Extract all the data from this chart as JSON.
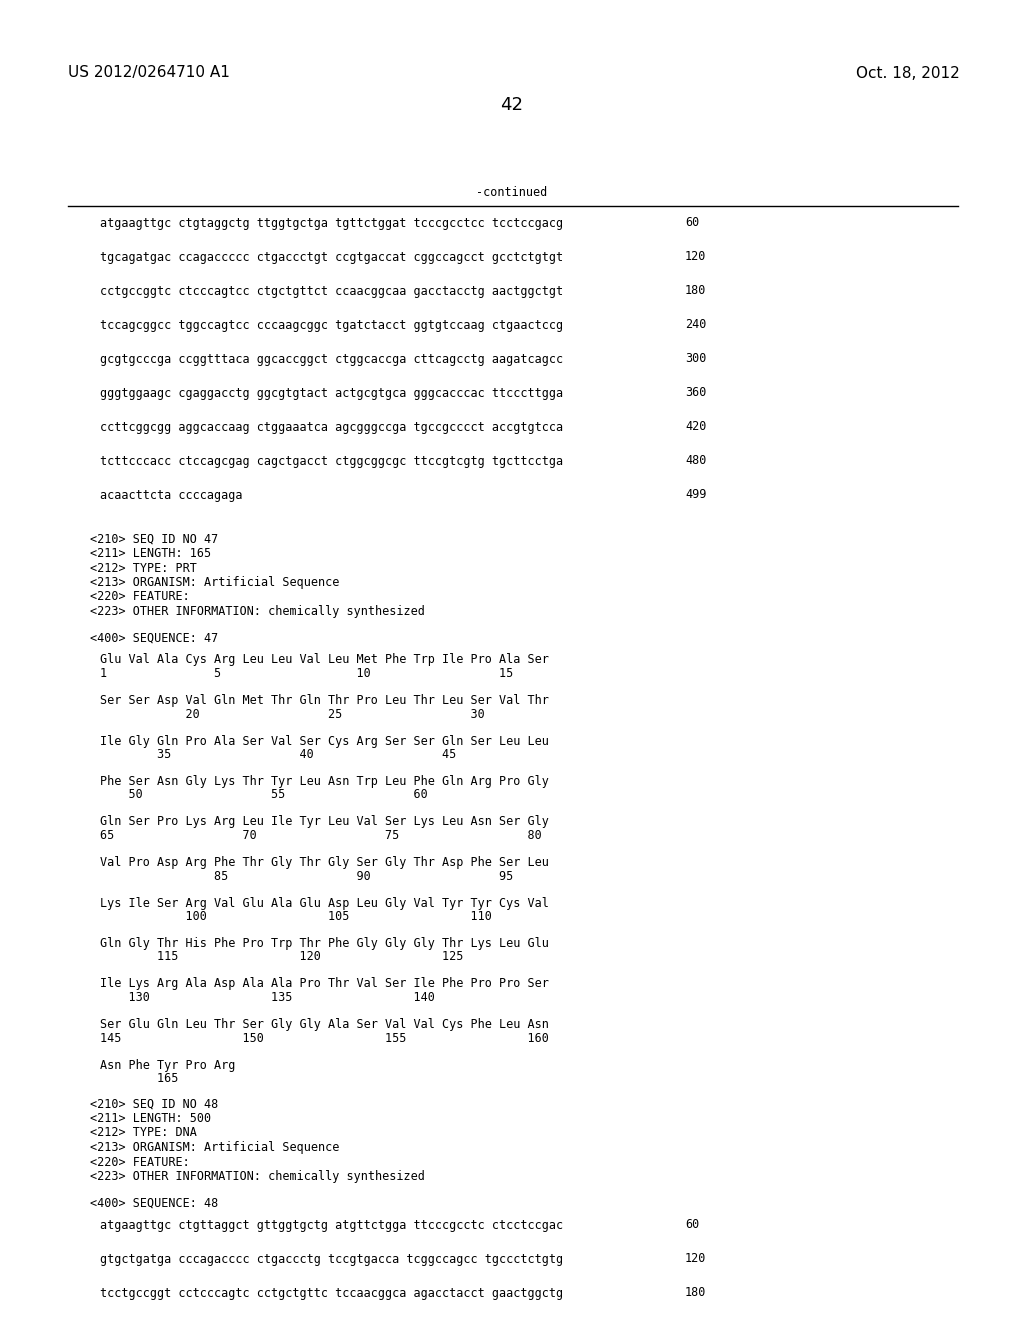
{
  "header_left": "US 2012/0264710 A1",
  "header_right": "Oct. 18, 2012",
  "page_number": "42",
  "continued_label": "-continued",
  "background_color": "#ffffff",
  "text_color": "#000000",
  "font_size_header": 11,
  "font_size_body": 8.5,
  "font_size_page": 13,
  "sequence_lines": [
    [
      "atgaagttgc ctgtaggctg ttggtgctga tgttctggat tcccgcctcc tcctccgacg",
      "60"
    ],
    [
      "tgcagatgac ccagaccccc ctgaccctgt ccgtgaccat cggccagcct gcctctgtgt",
      "120"
    ],
    [
      "cctgccggtc ctcccagtcc ctgctgttct ccaacggcaa gacctacctg aactggctgt",
      "180"
    ],
    [
      "tccagcggcc tggccagtcc cccaagcggc tgatctacct ggtgtccaag ctgaactccg",
      "240"
    ],
    [
      "gcgtgcccga ccggtttaca ggcaccggct ctggcaccga cttcagcctg aagatcagcc",
      "300"
    ],
    [
      "gggtggaagc cgaggacctg ggcgtgtact actgcgtgca gggcacccac ttcccttgga",
      "360"
    ],
    [
      "ccttcggcgg aggcaccaag ctggaaatca agcgggccga tgccgcccct accgtgtcca",
      "420"
    ],
    [
      "tcttcccacc ctccagcgag cagctgacct ctggcggcgc ttccgtcgtg tgcttcctga",
      "480"
    ],
    [
      "acaacttcta ccccagaga",
      "499"
    ]
  ],
  "meta_lines": [
    "<210> SEQ ID NO 47",
    "<211> LENGTH: 165",
    "<212> TYPE: PRT",
    "<213> ORGANISM: Artificial Sequence",
    "<220> FEATURE:",
    "<223> OTHER INFORMATION: chemically synthesized"
  ],
  "seq_label": "<400> SEQUENCE: 47",
  "protein_lines": [
    "Glu Val Ala Cys Arg Leu Leu Val Leu Met Phe Trp Ile Pro Ala Ser",
    "1               5                   10                  15",
    "",
    "Ser Ser Asp Val Gln Met Thr Gln Thr Pro Leu Thr Leu Ser Val Thr",
    "            20                  25                  30",
    "",
    "Ile Gly Gln Pro Ala Ser Val Ser Cys Arg Ser Ser Gln Ser Leu Leu",
    "        35                  40                  45",
    "",
    "Phe Ser Asn Gly Lys Thr Tyr Leu Asn Trp Leu Phe Gln Arg Pro Gly",
    "    50                  55                  60",
    "",
    "Gln Ser Pro Lys Arg Leu Ile Tyr Leu Val Ser Lys Leu Asn Ser Gly",
    "65                  70                  75                  80",
    "",
    "Val Pro Asp Arg Phe Thr Gly Thr Gly Ser Gly Thr Asp Phe Ser Leu",
    "                85                  90                  95",
    "",
    "Lys Ile Ser Arg Val Glu Ala Glu Asp Leu Gly Val Tyr Tyr Cys Val",
    "            100                 105                 110",
    "",
    "Gln Gly Thr His Phe Pro Trp Thr Phe Gly Gly Gly Thr Lys Leu Glu",
    "        115                 120                 125",
    "",
    "Ile Lys Arg Ala Asp Ala Ala Pro Thr Val Ser Ile Phe Pro Pro Ser",
    "    130                 135                 140",
    "",
    "Ser Glu Gln Leu Thr Ser Gly Gly Ala Ser Val Val Cys Phe Leu Asn",
    "145                 150                 155                 160",
    "",
    "Asn Phe Tyr Pro Arg",
    "        165"
  ],
  "meta_lines2": [
    "<210> SEQ ID NO 48",
    "<211> LENGTH: 500",
    "<212> TYPE: DNA",
    "<213> ORGANISM: Artificial Sequence",
    "<220> FEATURE:",
    "<223> OTHER INFORMATION: chemically synthesized"
  ],
  "seq_label2": "<400> SEQUENCE: 48",
  "sequence_lines2": [
    [
      "atgaagttgc ctgttaggct gttggtgctg atgttctgga ttcccgcctc ctcctccgac",
      "60"
    ],
    [
      "gtgctgatga cccagacccc ctgaccctg tccgtgacca tcggccagcc tgccctctgtg",
      "120"
    ],
    [
      "tcctgccggt cctcccagtc cctgctgttc tccaacggca agacctacct gaactggctg",
      "180"
    ]
  ]
}
